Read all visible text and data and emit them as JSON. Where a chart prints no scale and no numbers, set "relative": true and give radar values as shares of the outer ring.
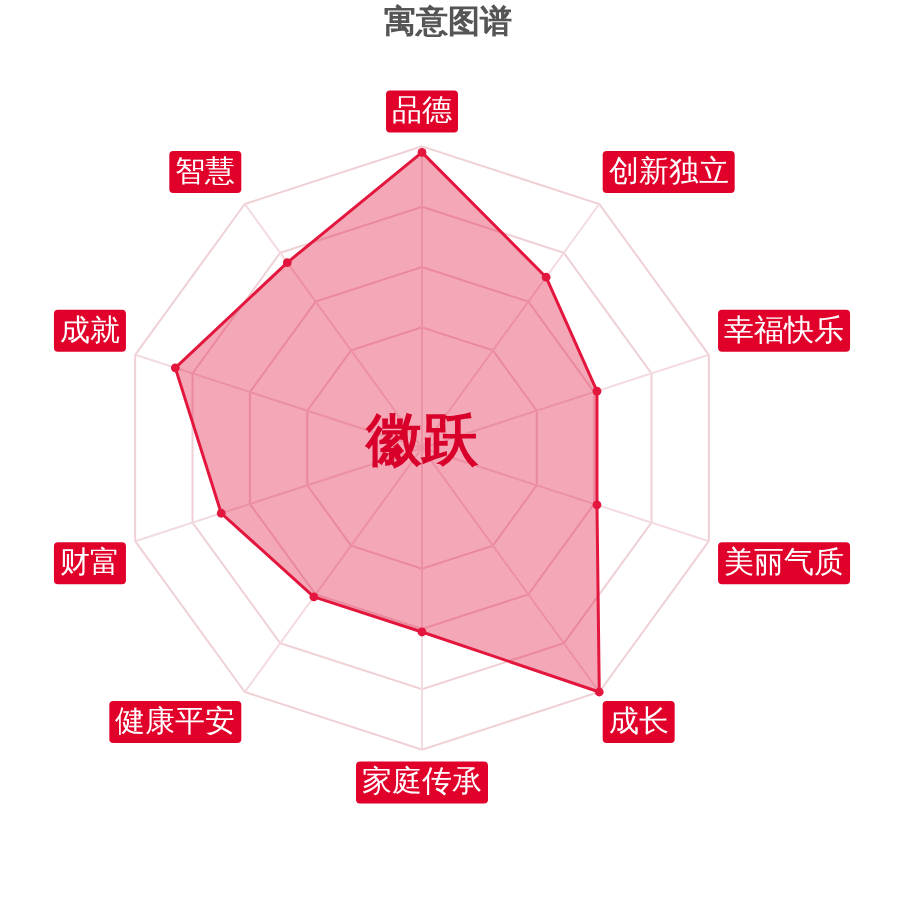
{
  "chart_data": {
    "type": "radar",
    "title": "寓意图谱",
    "categories": [
      "品德",
      "创新独立",
      "幸福快乐",
      "美丽气质",
      "成长",
      "家庭传承",
      "健康平安",
      "财富",
      "成就",
      "智慧"
    ],
    "relative": true,
    "series": [
      {
        "color": "#e3173e",
        "values": [
          0.98,
          0.7,
          0.61,
          0.61,
          1,
          0.61,
          0.61,
          0.7,
          0.86,
          0.76
        ]
      }
    ],
    "annotations": [
      "徽跃"
    ],
    "marker": "circle",
    "grid": true
  }
}
